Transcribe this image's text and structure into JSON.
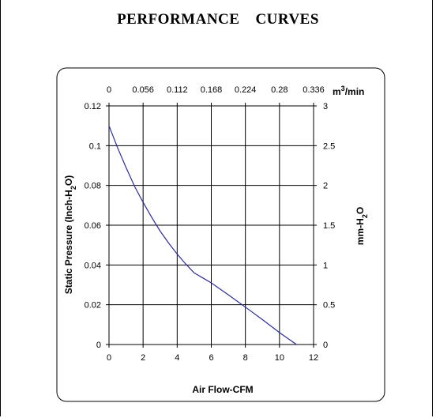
{
  "title_part1": "PERFORMANCE",
  "title_part2": "CURVES",
  "colors": {
    "curve": "#2b2b9e",
    "grid": "#000000",
    "frame": "#000000"
  },
  "chart_data": {
    "type": "line",
    "title": "PERFORMANCE    CURVES",
    "xlabel": "Air Flow-CFM",
    "ylabel": "Static Pressure (Inch-H2O)",
    "ylabel_parts": {
      "pre": "Static Pressure (Inch-H",
      "sub": "2",
      "post": "O)"
    },
    "y2label_parts": {
      "pre": "mm-H",
      "sub": "2",
      "post": "O"
    },
    "x2label_parts": {
      "pre": "m",
      "sup": "3",
      "post": "/min"
    },
    "xlim": [
      0,
      12
    ],
    "ylim": [
      0,
      0.12
    ],
    "grid": true,
    "x_ticks": [
      "0",
      "2",
      "4",
      "6",
      "8",
      "10",
      "12"
    ],
    "y_ticks": [
      "0",
      "0.02",
      "0.04",
      "0.06",
      "0.08",
      "0.1",
      "0.12"
    ],
    "x2_ticks": [
      "0",
      "0.056",
      "0.112",
      "0.168",
      "0.224",
      "0.28",
      "0.336"
    ],
    "y2_ticks": [
      "0",
      "0.5",
      "1",
      "1.5",
      "2",
      "2.5",
      "3"
    ],
    "series": [
      {
        "x": [
          0,
          0.5,
          1,
          1.5,
          2,
          2.5,
          3,
          3.5,
          4,
          4.5,
          5,
          5.5,
          6,
          7,
          8,
          9,
          10,
          11
        ],
        "y": [
          0.11,
          0.099,
          0.089,
          0.0795,
          0.0715,
          0.064,
          0.057,
          0.051,
          0.0455,
          0.0405,
          0.036,
          0.0335,
          0.031,
          0.025,
          0.0188,
          0.0125,
          0.006,
          0
        ]
      }
    ]
  }
}
